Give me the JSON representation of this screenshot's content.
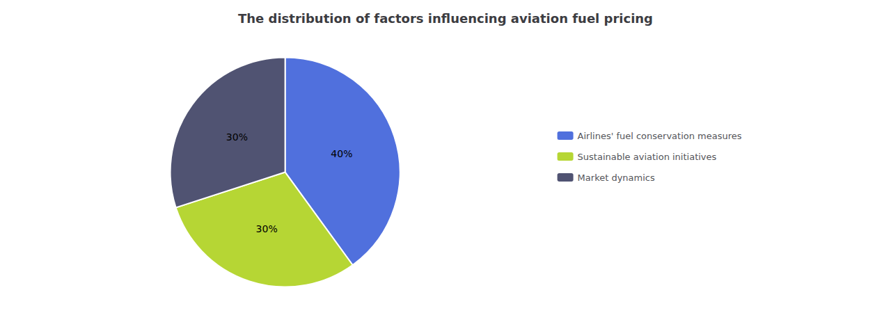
{
  "chart_data": {
    "type": "pie",
    "title": "The distribution of factors influencing aviation fuel pricing",
    "categories": [
      "Airlines' fuel conservation measures",
      "Sustainable aviation initiatives",
      "Market dynamics"
    ],
    "values": [
      40,
      30,
      30
    ],
    "value_labels": [
      "40%",
      "30%",
      "30%"
    ],
    "data_labels": true,
    "legend": "right"
  }
}
